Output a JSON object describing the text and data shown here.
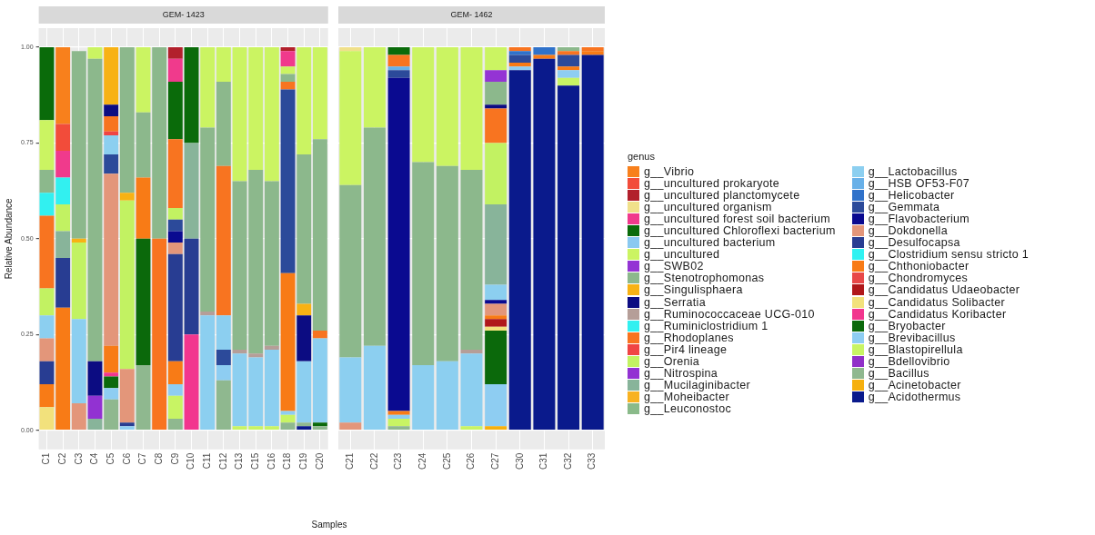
{
  "chart_data": [
    {
      "type": "bar",
      "title": "GEM- 1423",
      "ylabel": "Relative Abundance",
      "xlabel": "Samples",
      "stacked": true,
      "grid": true,
      "legend": false,
      "categories": [
        "C1",
        "C2",
        "C3",
        "C4",
        "C5",
        "C6",
        "C7",
        "C8",
        "C9",
        "C10",
        "C11",
        "C12",
        "C13",
        "C15",
        "C16",
        "C18",
        "C19",
        "C20"
      ],
      "ylim": [
        -0.05,
        1.05
      ],
      "yticks": [
        {
          "value": 0,
          "label": "0.00"
        },
        {
          "value": 0.25,
          "label": "0.25"
        },
        {
          "value": 0.5,
          "label": "0.50"
        },
        {
          "value": 0.75,
          "label": "0.75"
        },
        {
          "value": 1,
          "label": "1.00"
        }
      ],
      "series": [
        {
          "color": "#0a1a8c",
          "values": [
            0,
            0,
            0,
            0,
            0,
            0,
            0,
            0,
            0,
            0,
            0,
            0,
            0,
            0,
            0,
            0,
            0.01,
            0
          ]
        },
        {
          "color": "#8fb88f",
          "values": [
            0,
            0,
            0,
            0,
            0.08,
            0,
            0.17,
            0,
            0.03,
            0,
            0,
            0.13,
            0,
            0,
            0,
            0.02,
            0.01,
            0.01
          ]
        },
        {
          "color": "#c8f464",
          "values": [
            0,
            0,
            0,
            0,
            0,
            0,
            0,
            0,
            0.06,
            0,
            0,
            0,
            0.01,
            0.01,
            0.01,
            0.02,
            0,
            0
          ]
        },
        {
          "color": "#8ecdf2",
          "values": [
            0,
            0,
            0,
            0,
            0.03,
            0.01,
            0,
            0,
            0.03,
            0,
            0,
            0.04,
            0,
            0,
            0,
            0.01,
            0,
            0
          ]
        },
        {
          "color": "#0b690b",
          "values": [
            0,
            0,
            0,
            0,
            0.03,
            0,
            0.33,
            0,
            0,
            0,
            0,
            0,
            0,
            0,
            0,
            0,
            0,
            0.01
          ]
        },
        {
          "color": "#f2368e",
          "values": [
            0,
            0,
            0,
            0,
            0.01,
            0,
            0,
            0,
            0,
            0.25,
            0,
            0,
            0,
            0,
            0,
            0,
            0,
            0
          ]
        },
        {
          "color": "#f2e17c",
          "values": [
            0.06,
            0,
            0,
            0,
            0,
            0,
            0,
            0,
            0,
            0,
            0,
            0,
            0,
            0,
            0,
            0,
            0,
            0
          ]
        },
        {
          "color": "#f87b16",
          "values": [
            0.06,
            0.32,
            0,
            0,
            0.07,
            0,
            0.16,
            0,
            0.06,
            0,
            0,
            0,
            0,
            0,
            0,
            0.36,
            0,
            0
          ]
        },
        {
          "color": "#283d92",
          "values": [
            0.06,
            0.13,
            0,
            0,
            0,
            0.01,
            0,
            0,
            0.28,
            0.25,
            0,
            0,
            0,
            0,
            0,
            0,
            0,
            0
          ]
        },
        {
          "color": "#e3967a",
          "values": [
            0.06,
            0,
            0.07,
            0,
            0.45,
            0.14,
            0,
            0,
            0.03,
            0,
            0,
            0,
            0,
            0,
            0,
            0,
            0,
            0
          ]
        },
        {
          "color": "#0a0a90",
          "values": [
            0,
            0,
            0,
            0,
            0,
            0,
            0,
            0,
            0.03,
            0,
            0,
            0,
            0,
            0,
            0,
            0,
            0,
            0
          ]
        },
        {
          "color": "#2c4a9a",
          "values": [
            0,
            0,
            0,
            0,
            0.05,
            0,
            0,
            0,
            0.03,
            0,
            0,
            0.04,
            0,
            0,
            0,
            0.48,
            0,
            0
          ]
        },
        {
          "color": "#8ccff0",
          "values": [
            0.06,
            0,
            0.22,
            0,
            0.05,
            0,
            0,
            0,
            0,
            0,
            0.3,
            0.09,
            0.19,
            0.18,
            0.2,
            0,
            0.16,
            0.22
          ]
        },
        {
          "color": "#88b49a",
          "values": [
            0,
            0.07,
            0,
            0.03,
            0,
            0,
            0,
            0,
            0,
            0.25,
            0,
            0,
            0,
            0,
            0,
            0,
            0,
            0
          ]
        },
        {
          "color": "#9232d2",
          "values": [
            0,
            0,
            0,
            0.06,
            0,
            0,
            0,
            0,
            0,
            0,
            0,
            0,
            0,
            0,
            0,
            0,
            0,
            0
          ]
        },
        {
          "color": "#c2f262",
          "values": [
            0.07,
            0.07,
            0.2,
            0,
            0,
            0.44,
            0,
            0,
            0.03,
            0,
            0,
            0,
            0,
            0,
            0,
            0,
            0,
            0
          ]
        },
        {
          "color": "#f04444",
          "values": [
            0,
            0,
            0,
            0,
            0.01,
            0,
            0,
            0,
            0,
            0,
            0,
            0,
            0,
            0,
            0,
            0,
            0,
            0
          ]
        },
        {
          "color": "#f87420",
          "values": [
            0.19,
            0,
            0,
            0,
            0.04,
            0,
            0,
            0.5,
            0.18,
            0,
            0,
            0.39,
            0,
            0,
            0,
            0.02,
            0,
            0.02
          ]
        },
        {
          "color": "#32f0f0",
          "values": [
            0.06,
            0.07,
            0,
            0,
            0,
            0,
            0,
            0,
            0,
            0,
            0,
            0,
            0,
            0,
            0,
            0,
            0,
            0
          ]
        },
        {
          "color": "#b59e98",
          "values": [
            0,
            0,
            0,
            0,
            0,
            0,
            0,
            0,
            0,
            0,
            0.01,
            0,
            0.01,
            0.01,
            0.01,
            0,
            0,
            0
          ]
        },
        {
          "color": "#0c0c82",
          "values": [
            0,
            0,
            0,
            0.09,
            0.03,
            0,
            0,
            0,
            0,
            0,
            0,
            0,
            0,
            0,
            0,
            0,
            0.12,
            0
          ]
        },
        {
          "color": "#f8b214",
          "values": [
            0,
            0,
            0.01,
            0,
            0.15,
            0.02,
            0,
            0,
            0,
            0,
            0,
            0,
            0,
            0,
            0,
            0,
            0.03,
            0
          ]
        },
        {
          "color": "#8cb88c",
          "values": [
            0.06,
            0,
            0.49,
            0.79,
            0,
            0.38,
            0.17,
            0.5,
            0,
            0,
            0.48,
            0.22,
            0.44,
            0.48,
            0.43,
            0.02,
            0.39,
            0.5
          ]
        },
        {
          "color": "#cbf462",
          "values": [
            0.13,
            0,
            0,
            0.03,
            0,
            0,
            0.17,
            0,
            0,
            0,
            0.21,
            0.09,
            0.35,
            0.32,
            0.35,
            0.02,
            0.28,
            0.24
          ]
        },
        {
          "color": "#0a6b0a",
          "values": [
            0.19,
            0,
            0,
            0,
            0,
            0,
            0,
            0,
            0.15,
            0.25,
            0,
            0,
            0,
            0,
            0,
            0,
            0,
            0
          ]
        },
        {
          "color": "#f03a8c",
          "values": [
            0,
            0.07,
            0,
            0,
            0,
            0,
            0,
            0,
            0.06,
            0,
            0,
            0,
            0,
            0,
            0,
            0.04,
            0,
            0
          ]
        },
        {
          "color": "#b2202c",
          "values": [
            0,
            0,
            0,
            0,
            0,
            0,
            0,
            0,
            0.03,
            0,
            0,
            0,
            0,
            0,
            0,
            0.01,
            0,
            0
          ]
        },
        {
          "color": "#f24c3a",
          "values": [
            0,
            0.07,
            0,
            0,
            0,
            0,
            0,
            0,
            0,
            0,
            0,
            0,
            0,
            0,
            0,
            0,
            0,
            0
          ]
        },
        {
          "color": "#f8801c",
          "values": [
            0,
            0.2,
            0,
            0,
            0,
            0,
            0,
            0,
            0,
            0,
            0,
            0,
            0,
            0,
            0,
            0,
            0,
            0
          ]
        }
      ]
    },
    {
      "type": "bar",
      "title": "GEM- 1462",
      "stacked": true,
      "grid": true,
      "legend": "right",
      "legend_title": "genus",
      "tick_labels": "x",
      "categories": [
        "C21",
        "C22",
        "C23",
        "C24",
        "C25",
        "C26",
        "C27",
        "C30",
        "C31",
        "C32",
        "C33"
      ],
      "ylim": [
        -0.05,
        1.05
      ],
      "yticks": [
        0,
        0.25,
        0.5,
        0.75,
        1
      ],
      "series": [
        {
          "name": "g__Acidothermus",
          "color": "#0a1a8c",
          "values": [
            0,
            0,
            0,
            0,
            0,
            0,
            0,
            0.94,
            0.97,
            0.9,
            0.98
          ]
        },
        {
          "name": "g__Acinetobacter",
          "color": "#f6b00e",
          "values": [
            0,
            0,
            0,
            0,
            0,
            0,
            0.01,
            0,
            0,
            0,
            0
          ]
        },
        {
          "name": "g__Bacillus",
          "color": "#8fb88f",
          "values": [
            0,
            0,
            0.01,
            0,
            0,
            0,
            0,
            0,
            0,
            0,
            0
          ]
        },
        {
          "name": "g__Bdellovibrio",
          "color": "#9030c8",
          "values": [
            0,
            0,
            0,
            0,
            0,
            0,
            0,
            0,
            0,
            0,
            0
          ]
        },
        {
          "name": "g__Blastopirellula",
          "color": "#c8f464",
          "values": [
            0,
            0,
            0.02,
            0,
            0,
            0.01,
            0,
            0,
            0,
            0.02,
            0
          ]
        },
        {
          "name": "g__Brevibacillus",
          "color": "#8ecdf2",
          "values": [
            0,
            0,
            0.01,
            0,
            0,
            0,
            0.11,
            0.01,
            0,
            0.02,
            0
          ]
        },
        {
          "name": "g__Bryobacter",
          "color": "#0b690b",
          "values": [
            0,
            0,
            0,
            0,
            0,
            0,
            0.14,
            0,
            0,
            0,
            0
          ]
        },
        {
          "name": "g__Candidatus Koribacter",
          "color": "#f2368e",
          "values": [
            0,
            0,
            0,
            0,
            0,
            0,
            0,
            0,
            0,
            0,
            0
          ]
        },
        {
          "name": "g__Candidatus Solibacter",
          "color": "#f2e17c",
          "values": [
            0,
            0,
            0,
            0,
            0,
            0,
            0.01,
            0,
            0,
            0,
            0
          ]
        },
        {
          "name": "g__Candidatus Udaeobacter",
          "color": "#b0181a",
          "values": [
            0,
            0,
            0,
            0,
            0,
            0,
            0.02,
            0,
            0,
            0,
            0
          ]
        },
        {
          "name": "g__Chondromyces",
          "color": "#e84848",
          "values": [
            0,
            0,
            0,
            0,
            0,
            0,
            0,
            0,
            0,
            0,
            0
          ]
        },
        {
          "name": "g__Chthoniobacter",
          "color": "#f87b16",
          "values": [
            0,
            0,
            0.01,
            0,
            0,
            0,
            0.01,
            0.01,
            0.01,
            0.01,
            0.01
          ]
        },
        {
          "name": "g__Clostridium sensu stricto 1",
          "color": "#30f2f2",
          "values": [
            0,
            0,
            0,
            0,
            0,
            0,
            0,
            0,
            0,
            0,
            0
          ]
        },
        {
          "name": "g__Desulfocapsa",
          "color": "#283d92",
          "values": [
            0,
            0,
            0,
            0,
            0,
            0,
            0,
            0,
            0,
            0,
            0
          ]
        },
        {
          "name": "g__Dokdonella",
          "color": "#e3967a",
          "values": [
            0.02,
            0,
            0,
            0,
            0,
            0,
            0.03,
            0,
            0,
            0,
            0
          ]
        },
        {
          "name": "g__Flavobacterium",
          "color": "#0a0a90",
          "values": [
            0,
            0,
            0.87,
            0,
            0,
            0,
            0.01,
            0,
            0,
            0,
            0
          ]
        },
        {
          "name": "g__Gemmata",
          "color": "#2c4a9a",
          "values": [
            0,
            0,
            0.02,
            0,
            0,
            0,
            0,
            0.02,
            0,
            0.03,
            0
          ]
        },
        {
          "name": "g__Helicobacter",
          "color": "#3072ca",
          "values": [
            0,
            0,
            0,
            0,
            0,
            0,
            0,
            0.01,
            0.02,
            0,
            0
          ]
        },
        {
          "name": "g__HSB OF53-F07",
          "color": "#68b0e8",
          "values": [
            0,
            0,
            0.01,
            0,
            0,
            0,
            0,
            0,
            0,
            0,
            0
          ]
        },
        {
          "name": "g__Lactobacillus",
          "color": "#8ccff0",
          "values": [
            0.17,
            0.22,
            0,
            0.17,
            0.18,
            0.19,
            0.04,
            0,
            0,
            0,
            0
          ]
        },
        {
          "name": "g__Leuconostoc",
          "color": "#8aba8a",
          "values": [
            0,
            0,
            0,
            0,
            0,
            0,
            0,
            0,
            0,
            0,
            0
          ]
        },
        {
          "name": "g__Moheibacter",
          "color": "#f8b222",
          "values": [
            0,
            0,
            0,
            0,
            0,
            0,
            0,
            0,
            0,
            0,
            0
          ]
        },
        {
          "name": "g__Mucilaginibacter",
          "color": "#88b49a",
          "values": [
            0,
            0,
            0,
            0,
            0,
            0,
            0.21,
            0,
            0,
            0,
            0
          ]
        },
        {
          "name": "g__Nitrospina",
          "color": "#9232d2",
          "values": [
            0,
            0,
            0,
            0,
            0,
            0,
            0,
            0,
            0,
            0,
            0
          ]
        },
        {
          "name": "g__Orenia",
          "color": "#c2f262",
          "values": [
            0,
            0,
            0,
            0,
            0,
            0,
            0.16,
            0,
            0,
            0,
            0
          ]
        },
        {
          "name": "g__Pir4 lineage",
          "color": "#f04444",
          "values": [
            0,
            0,
            0,
            0,
            0,
            0,
            0,
            0,
            0,
            0,
            0
          ]
        },
        {
          "name": "g__Rhodoplanes",
          "color": "#f87420",
          "values": [
            0,
            0,
            0.03,
            0,
            0,
            0,
            0.09,
            0.01,
            0,
            0.01,
            0.01
          ]
        },
        {
          "name": "g__Ruminiclostridium 1",
          "color": "#32f0f0",
          "values": [
            0,
            0,
            0,
            0,
            0,
            0,
            0,
            0,
            0,
            0,
            0
          ]
        },
        {
          "name": "g__Ruminococcaceae UCG-010",
          "color": "#b59e98",
          "values": [
            0,
            0,
            0,
            0,
            0,
            0.01,
            0,
            0,
            0,
            0,
            0
          ]
        },
        {
          "name": "g__Serratia",
          "color": "#0c0c82",
          "values": [
            0,
            0,
            0,
            0,
            0,
            0,
            0.01,
            0,
            0,
            0,
            0
          ]
        },
        {
          "name": "g__Singulisphaera",
          "color": "#f8b214",
          "values": [
            0,
            0,
            0,
            0,
            0,
            0,
            0,
            0,
            0,
            0,
            0
          ]
        },
        {
          "name": "g__Stenotrophomonas",
          "color": "#8cb88c",
          "values": [
            0.45,
            0.57,
            0,
            0.53,
            0.51,
            0.47,
            0.06,
            0,
            0,
            0.01,
            0
          ]
        },
        {
          "name": "g__SWB02",
          "color": "#9434d4",
          "values": [
            0,
            0,
            0,
            0,
            0,
            0,
            0.03,
            0,
            0,
            0,
            0
          ]
        },
        {
          "name": "g__uncultured",
          "color": "#cbf462",
          "values": [
            0.35,
            0.21,
            0,
            0.3,
            0.31,
            0.32,
            0.06,
            0,
            0,
            0,
            0
          ]
        },
        {
          "name": "g__uncultured bacterium",
          "color": "#8ac9f0",
          "values": [
            0,
            0,
            0,
            0,
            0,
            0,
            0,
            0,
            0,
            0,
            0
          ]
        },
        {
          "name": "g__uncultured Chloroflexi bacterium",
          "color": "#0a6b0a",
          "values": [
            0,
            0,
            0.02,
            0,
            0,
            0,
            0,
            0,
            0,
            0,
            0
          ]
        },
        {
          "name": "g__uncultured forest soil bacterium",
          "color": "#f03a8c",
          "values": [
            0,
            0,
            0,
            0,
            0,
            0,
            0,
            0,
            0,
            0,
            0
          ]
        },
        {
          "name": "g__uncultured organism",
          "color": "#f0e08a",
          "values": [
            0.01,
            0,
            0,
            0,
            0,
            0,
            0,
            0,
            0,
            0,
            0
          ]
        },
        {
          "name": "g__uncultured planctomycete",
          "color": "#b2202c",
          "values": [
            0,
            0,
            0,
            0,
            0,
            0,
            0,
            0,
            0,
            0,
            0
          ]
        },
        {
          "name": "g__uncultured prokaryote",
          "color": "#f24c3a",
          "values": [
            0,
            0,
            0,
            0,
            0,
            0,
            0,
            0,
            0,
            0,
            0
          ]
        },
        {
          "name": "g__Vibrio",
          "color": "#f8801c",
          "values": [
            0,
            0,
            0,
            0,
            0,
            0,
            0,
            0,
            0,
            0,
            0
          ]
        }
      ]
    }
  ]
}
